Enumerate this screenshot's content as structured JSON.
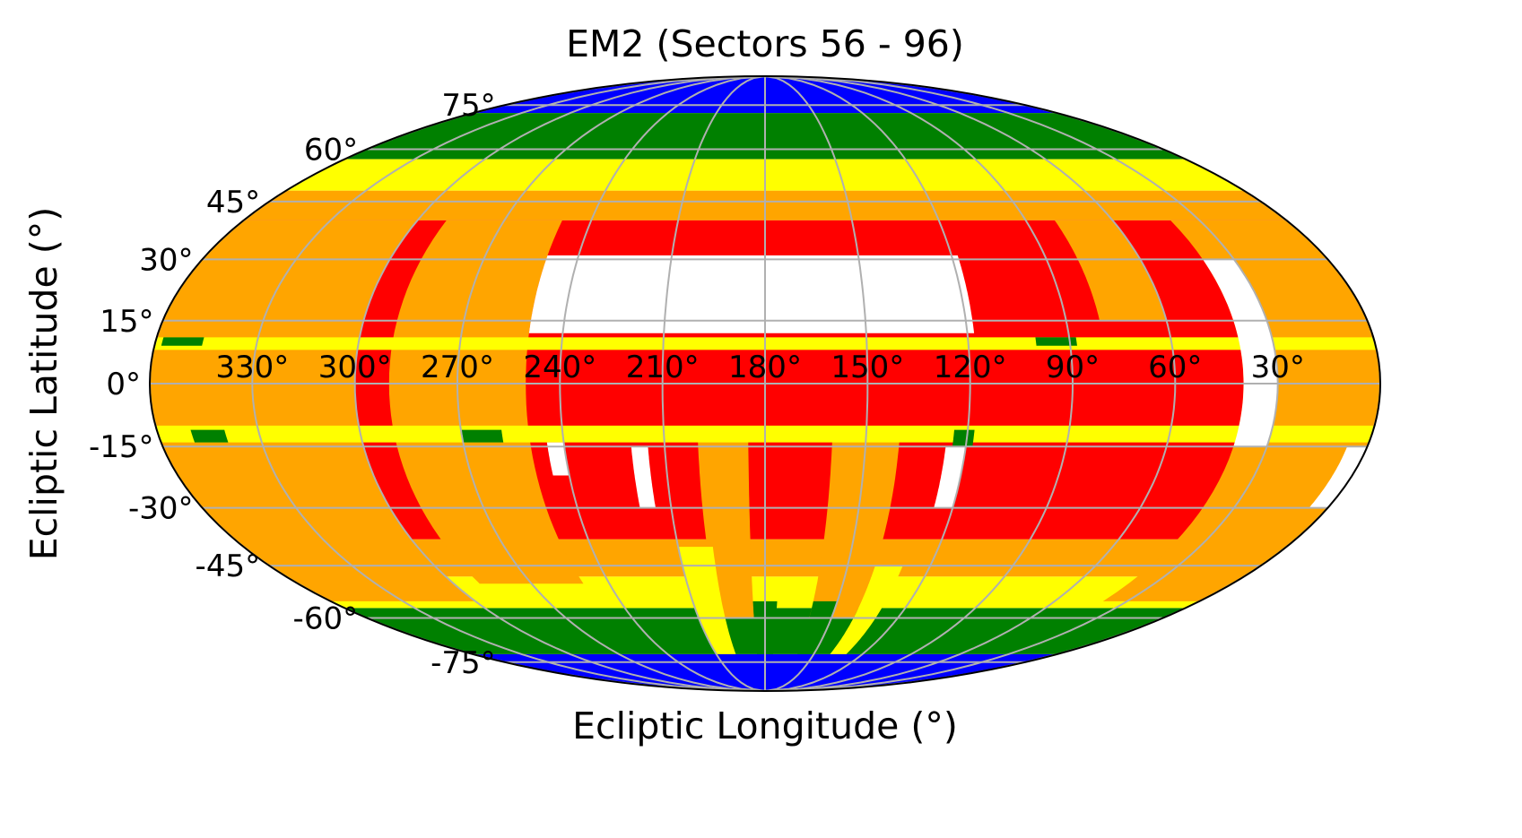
{
  "chart_data": {
    "type": "heatmap",
    "projection": "mollweide",
    "title": "EM2 (Sectors 56 - 96)",
    "xlabel": "Ecliptic Longitude (°)",
    "ylabel": "Ecliptic Latitude (°)",
    "xlim": [
      360,
      0
    ],
    "ylim": [
      -90,
      90
    ],
    "grid": true,
    "x_ticks": [
      330,
      300,
      270,
      240,
      210,
      180,
      150,
      120,
      90,
      60,
      30
    ],
    "x_tick_labels": [
      "330°",
      "300°",
      "270°",
      "240°",
      "210°",
      "180°",
      "150°",
      "120°",
      "90°",
      "60°",
      "30°"
    ],
    "y_ticks": [
      75,
      60,
      45,
      30,
      15,
      0,
      -15,
      -30,
      -45,
      -60,
      -75
    ],
    "y_tick_labels": [
      "75°",
      "60°",
      "45°",
      "30°",
      "15°",
      "0°",
      "-15°",
      "-30°",
      "-45°",
      "-60°",
      "-75°"
    ],
    "colors": {
      "white": "#ffffff",
      "red": "#ff0000",
      "orange": "#ffa500",
      "yellow": "#ffff00",
      "green": "#008000",
      "blue": "#0000ff",
      "grid": "#b0b0b0"
    },
    "coverage_regions": [
      {
        "color": "blue",
        "lon": [
          0,
          360
        ],
        "lat": [
          72,
          90
        ]
      },
      {
        "color": "blue",
        "lon": [
          0,
          360
        ],
        "lat": [
          -90,
          -72
        ]
      },
      {
        "color": "green",
        "lon": [
          0,
          360
        ],
        "lat": [
          57,
          72
        ]
      },
      {
        "color": "green",
        "lon": [
          0,
          360
        ],
        "lat": [
          -72,
          -57
        ]
      },
      {
        "color": "yellow",
        "lon": [
          0,
          360
        ],
        "lat": [
          48,
          57
        ]
      },
      {
        "color": "yellow",
        "lon": [
          0,
          360
        ],
        "lat": [
          -57,
          -48
        ]
      },
      {
        "color": "orange",
        "lon": [
          0,
          360
        ],
        "lat": [
          40,
          48
        ]
      },
      {
        "color": "orange",
        "lon": [
          0,
          360
        ],
        "lat": [
          -48,
          -38
        ]
      },
      {
        "color": "red",
        "lon": [
          0,
          360
        ],
        "lat": [
          -38,
          40
        ]
      },
      {
        "color": "orange",
        "lon": [
          300,
          360
        ],
        "lat": [
          -55,
          40
        ]
      },
      {
        "color": "orange",
        "lon": [
          0,
          40
        ],
        "lat": [
          -55,
          40
        ]
      },
      {
        "color": "orange",
        "lon": [
          250,
          290
        ],
        "lat": [
          -50,
          40
        ]
      },
      {
        "color": "orange",
        "lon": [
          185,
          200
        ],
        "lat": [
          -60,
          -12
        ]
      },
      {
        "color": "orange",
        "lon": [
          140,
          160
        ],
        "lat": [
          -60,
          -12
        ]
      },
      {
        "color": "orange",
        "lon": [
          60,
          80
        ],
        "lat": [
          15,
          40
        ]
      },
      {
        "color": "yellow",
        "lon": [
          198,
          210
        ],
        "lat": [
          -72,
          -40
        ]
      },
      {
        "color": "yellow",
        "lon": [
          130,
          140
        ],
        "lat": [
          -72,
          -45
        ]
      },
      {
        "color": "green",
        "lon": [
          175,
          185
        ],
        "lat": [
          -72,
          -55
        ]
      },
      {
        "color": "green",
        "lon": [
          150,
          160
        ],
        "lat": [
          -72,
          -55
        ]
      },
      {
        "color": "white",
        "lon": [
          118,
          250
        ],
        "lat": [
          12,
          31
        ]
      },
      {
        "color": "yellow",
        "lon": [
          0,
          360
        ],
        "lat": [
          8,
          11
        ]
      },
      {
        "color": "yellow",
        "lon": [
          0,
          360
        ],
        "lat": [
          -14,
          -10
        ]
      },
      {
        "color": "green",
        "lon": [
          346,
          358
        ],
        "lat": [
          9,
          11
        ]
      },
      {
        "color": "green",
        "lon": [
          88,
          100
        ],
        "lat": [
          9,
          11
        ]
      },
      {
        "color": "green",
        "lon": [
          340,
          350
        ],
        "lat": [
          -14,
          -11
        ]
      },
      {
        "color": "green",
        "lon": [
          258,
          270
        ],
        "lat": [
          -14,
          -11
        ]
      },
      {
        "color": "green",
        "lon": [
          118,
          124
        ],
        "lat": [
          -15,
          -11
        ]
      },
      {
        "color": "white",
        "lon": [
          30,
          40
        ],
        "lat": [
          -15,
          30
        ]
      },
      {
        "color": "white",
        "lon": [
          120,
          126
        ],
        "lat": [
          -30,
          -15
        ]
      },
      {
        "color": "white",
        "lon": [
          240,
          245
        ],
        "lat": [
          -22,
          -14
        ]
      },
      {
        "color": "white",
        "lon": [
          215,
          220
        ],
        "lat": [
          -30,
          -15
        ]
      },
      {
        "color": "white",
        "lon": [
          0,
          6
        ],
        "lat": [
          -30,
          -15
        ]
      }
    ]
  }
}
